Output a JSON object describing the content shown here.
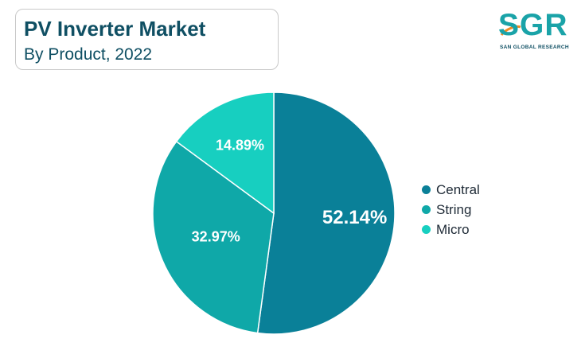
{
  "header": {
    "title": "PV Inverter Market",
    "subtitle": "By Product, 2022"
  },
  "logo": {
    "mark": "SGR",
    "text": "SAN GLOBAL RESEARCH",
    "icon": "sgr-logo-icon"
  },
  "colors": {
    "title": "#0f4f63",
    "accent": "#1aa3a8"
  },
  "chart_data": {
    "type": "pie",
    "title": "PV Inverter Market",
    "subtitle": "By Product, 2022",
    "labels": [
      "Central",
      "String",
      "Micro"
    ],
    "values": [
      52.14,
      32.97,
      14.89
    ],
    "value_labels": [
      "52.14%",
      "32.97%",
      "14.89%"
    ],
    "colors": [
      "#0a8098",
      "#0fa8a8",
      "#17cfc0"
    ],
    "start": "12 o'clock",
    "direction": "clockwise",
    "legend_position": "right"
  }
}
